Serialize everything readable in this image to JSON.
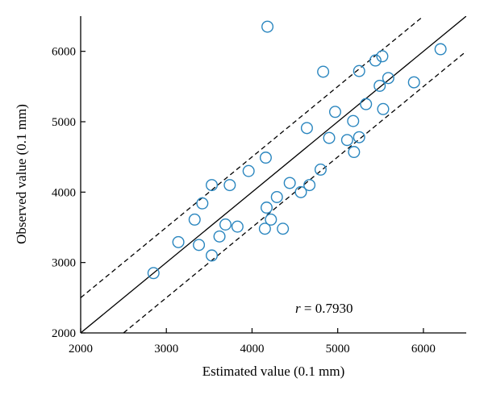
{
  "chart_data": {
    "type": "scatter",
    "xlabel": "Estimated value (0.1 mm)",
    "ylabel": "Observed value (0.1 mm)",
    "xlim": [
      2000,
      6500
    ],
    "ylim": [
      2000,
      6500
    ],
    "xticks": [
      "2000",
      "3000",
      "4000",
      "5000",
      "6000"
    ],
    "yticks": [
      "2000",
      "3000",
      "4000",
      "5000",
      "6000"
    ],
    "marker": "open-circle",
    "marker_color": "#2a86bf",
    "series": [
      {
        "points": [
          [
            2850,
            2850
          ],
          [
            3140,
            3290
          ],
          [
            3330,
            3610
          ],
          [
            3380,
            3250
          ],
          [
            3420,
            3840
          ],
          [
            3530,
            4100
          ],
          [
            3530,
            3100
          ],
          [
            3620,
            3370
          ],
          [
            3690,
            3540
          ],
          [
            3740,
            4100
          ],
          [
            3830,
            3510
          ],
          [
            3960,
            4300
          ],
          [
            4150,
            3480
          ],
          [
            4160,
            4490
          ],
          [
            4170,
            3780
          ],
          [
            4180,
            6350
          ],
          [
            4220,
            3610
          ],
          [
            4290,
            3930
          ],
          [
            4360,
            3480
          ],
          [
            4440,
            4130
          ],
          [
            4570,
            4000
          ],
          [
            4640,
            4910
          ],
          [
            4670,
            4100
          ],
          [
            4800,
            4320
          ],
          [
            4830,
            5710
          ],
          [
            4900,
            4770
          ],
          [
            4970,
            5140
          ],
          [
            5110,
            4740
          ],
          [
            5180,
            5010
          ],
          [
            5190,
            4570
          ],
          [
            5250,
            5720
          ],
          [
            5250,
            4780
          ],
          [
            5330,
            5250
          ],
          [
            5440,
            5870
          ],
          [
            5490,
            5510
          ],
          [
            5520,
            5930
          ],
          [
            5530,
            5180
          ],
          [
            5590,
            5620
          ],
          [
            5890,
            5560
          ],
          [
            6200,
            6030
          ]
        ]
      }
    ],
    "lines": [
      {
        "style": "solid",
        "from": [
          2000,
          2000
        ],
        "to": [
          6500,
          6500
        ]
      },
      {
        "style": "dashed",
        "from": [
          2000,
          2500
        ],
        "to": [
          6000,
          6500
        ]
      },
      {
        "style": "dashed",
        "from": [
          2500,
          2000
        ],
        "to": [
          6500,
          6000
        ]
      }
    ],
    "annotation": {
      "label": "r",
      "text": " = 0.7930"
    }
  }
}
